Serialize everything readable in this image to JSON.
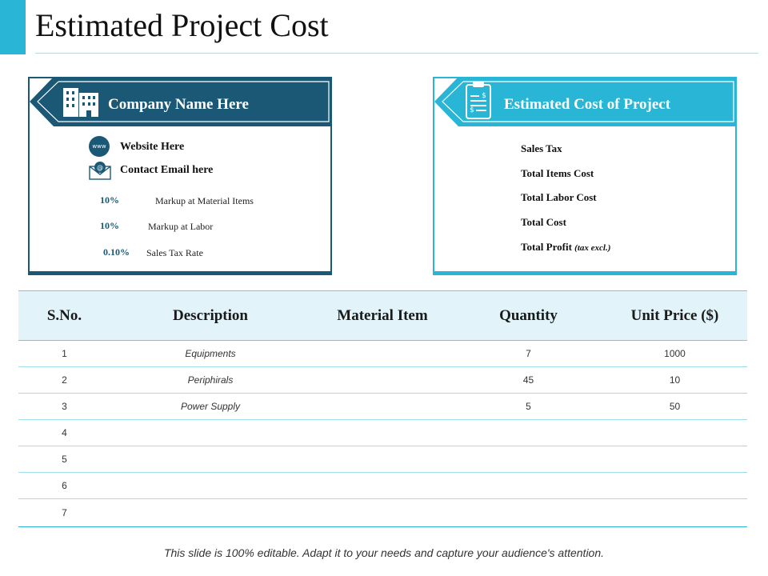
{
  "page": {
    "title": "Estimated Project Cost",
    "footer": "This slide is 100% editable. Adapt it to your needs and capture your audience's attention."
  },
  "colors": {
    "navy": "#1b5876",
    "cyan": "#29b6d6",
    "header_bg": "#e2f4fa"
  },
  "company_card": {
    "title": "Company Name Here",
    "icon": "building-icon",
    "website_icon": "www-icon",
    "email_icon": "email-envelope-icon",
    "website": "Website Here",
    "email": "Contact Email here",
    "markups": [
      {
        "value": "10%",
        "label": "Markup at Material Items"
      },
      {
        "value": "10%",
        "label": "Markup at Labor"
      },
      {
        "value": "0.10%",
        "label": "Sales Tax Rate"
      }
    ]
  },
  "estimate_card": {
    "title": "Estimated Cost of Project",
    "icon": "clipboard-dollar-icon",
    "items": [
      "Sales Tax",
      "Total Items Cost",
      "Total Labor Cost",
      "Total Cost"
    ],
    "profit_label": "Total Profit",
    "profit_note": "(tax excl.)"
  },
  "table": {
    "headers": [
      "S.No.",
      "Description",
      "Material Item",
      "Quantity",
      "Unit Price ($)"
    ],
    "rows": [
      [
        "1",
        "Equipments",
        "",
        "7",
        "1000"
      ],
      [
        "2",
        "Periphirals",
        "",
        "45",
        "10"
      ],
      [
        "3",
        "Power  Supply",
        "",
        "5",
        "50"
      ],
      [
        "4",
        "",
        "",
        "",
        ""
      ],
      [
        "5",
        "",
        "",
        "",
        ""
      ],
      [
        "6",
        "",
        "",
        "",
        ""
      ],
      [
        "7",
        "",
        "",
        "",
        ""
      ]
    ]
  }
}
